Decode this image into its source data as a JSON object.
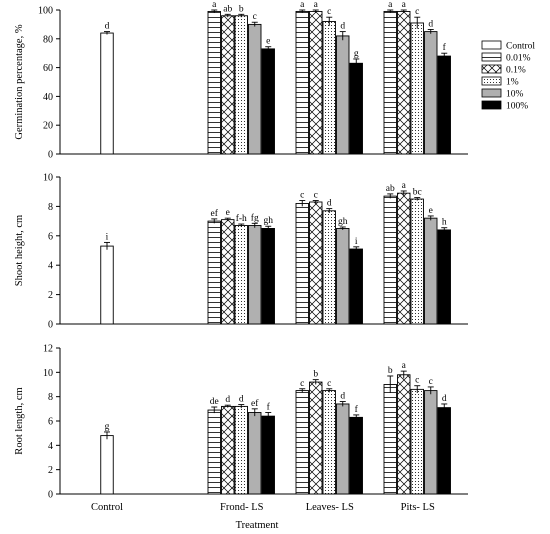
{
  "legend": {
    "placement": "right of top panel",
    "entries": [
      {
        "name": "Control",
        "pattern": "white"
      },
      {
        "name": "0.01%",
        "pattern": "hlines"
      },
      {
        "name": "0.1%",
        "pattern": "crosshatch"
      },
      {
        "name": "1%",
        "pattern": "dots"
      },
      {
        "name": "10%",
        "pattern": "gray"
      },
      {
        "name": "100%",
        "pattern": "black"
      }
    ]
  },
  "xlabel": "Treatment",
  "categories": [
    "Control",
    "Frond- LS",
    "Leaves- LS",
    "Pits- LS"
  ],
  "chart_data": [
    {
      "type": "bar",
      "ylabel": "Germination percentage, %",
      "ylim": [
        0,
        100
      ],
      "yticks": [
        "0",
        "20",
        "40",
        "60",
        "80",
        "100"
      ],
      "control": {
        "value": 84,
        "error": 1,
        "label": "d"
      },
      "groups": [
        {
          "category": "Frond- LS",
          "values": [
            99,
            96,
            96,
            90,
            73
          ],
          "errors": [
            1,
            1,
            1,
            1.5,
            1.5
          ],
          "labels": [
            "a",
            "ab",
            "b",
            "c",
            "e"
          ]
        },
        {
          "category": "Leaves- LS",
          "values": [
            99,
            99,
            92,
            82,
            63
          ],
          "errors": [
            1,
            1,
            3,
            3,
            3
          ],
          "labels": [
            "a",
            "a",
            "c",
            "d",
            "g"
          ]
        },
        {
          "category": "Pits- LS",
          "values": [
            99,
            99,
            91,
            85,
            68
          ],
          "errors": [
            1,
            1,
            4,
            1.5,
            2
          ],
          "labels": [
            "a",
            "a",
            "c",
            "d",
            "f"
          ]
        }
      ]
    },
    {
      "type": "bar",
      "ylabel": "Shoot height, cm",
      "ylim": [
        0,
        10
      ],
      "yticks": [
        "0",
        "2",
        "4",
        "6",
        "8",
        "10"
      ],
      "control": {
        "value": 5.3,
        "error": 0.25,
        "label": "i"
      },
      "groups": [
        {
          "category": "Frond- LS",
          "values": [
            7.0,
            7.1,
            6.7,
            6.7,
            6.5
          ],
          "errors": [
            0.15,
            0.1,
            0.1,
            0.15,
            0.15
          ],
          "labels": [
            "ef",
            "e",
            "f-h",
            "fg",
            "gh"
          ]
        },
        {
          "category": "Leaves- LS",
          "values": [
            8.2,
            8.3,
            7.7,
            6.5,
            5.1
          ],
          "errors": [
            0.2,
            0.1,
            0.15,
            0.1,
            0.15
          ],
          "labels": [
            "c",
            "c",
            "d",
            "gh",
            "i"
          ]
        },
        {
          "category": "Pits- LS",
          "values": [
            8.7,
            8.9,
            8.5,
            7.2,
            6.4
          ],
          "errors": [
            0.15,
            0.15,
            0.1,
            0.15,
            0.15
          ],
          "labels": [
            "ab",
            "a",
            "bc",
            "e",
            "h"
          ]
        }
      ]
    },
    {
      "type": "bar",
      "ylabel": "Root length, cm",
      "ylim": [
        0,
        12
      ],
      "yticks": [
        "0",
        "2",
        "4",
        "6",
        "8",
        "10",
        "12"
      ],
      "control": {
        "value": 4.8,
        "error": 0.3,
        "label": "g"
      },
      "groups": [
        {
          "category": "Frond- LS",
          "values": [
            6.9,
            7.2,
            7.2,
            6.7,
            6.4
          ],
          "errors": [
            0.25,
            0.1,
            0.15,
            0.3,
            0.3
          ],
          "labels": [
            "de",
            "d",
            "d",
            "ef",
            "f"
          ]
        },
        {
          "category": "Leaves- LS",
          "values": [
            8.5,
            9.2,
            8.5,
            7.4,
            6.3
          ],
          "errors": [
            0.15,
            0.2,
            0.15,
            0.2,
            0.2
          ],
          "labels": [
            "c",
            "b",
            "c",
            "d",
            "f"
          ]
        },
        {
          "category": "Pits- LS",
          "values": [
            9.0,
            9.8,
            8.6,
            8.5,
            7.1
          ],
          "errors": [
            0.7,
            0.3,
            0.3,
            0.3,
            0.3
          ],
          "labels": [
            "b",
            "a",
            "c",
            "c",
            "d"
          ]
        }
      ]
    }
  ]
}
